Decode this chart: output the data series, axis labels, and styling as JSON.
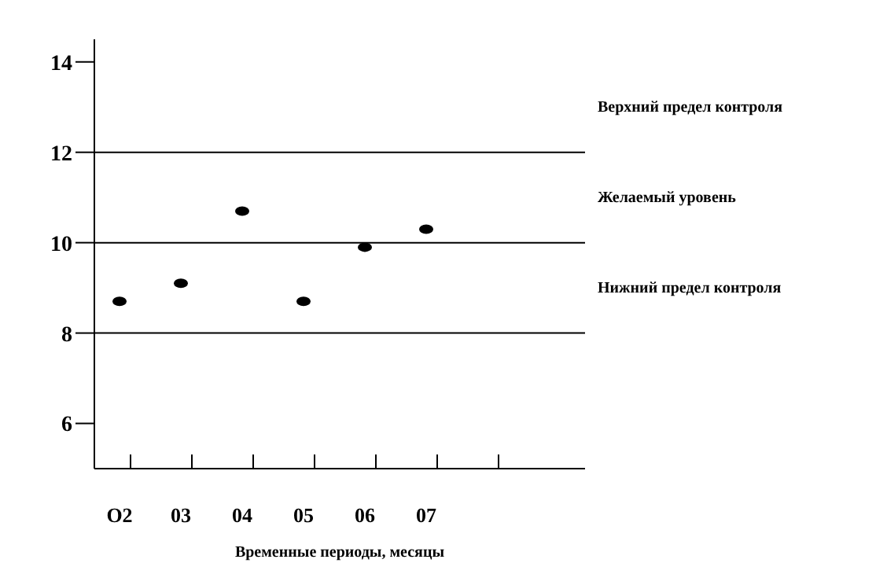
{
  "chart_data": {
    "type": "scatter",
    "xlabel": "Временные периоды, месяцы",
    "categories": [
      "O2",
      "03",
      "04",
      "05",
      "06",
      "07",
      null
    ],
    "values": [
      8.7,
      9.1,
      10.7,
      8.7,
      9.9,
      10.3,
      null
    ],
    "color": "#000000",
    "marker": "circle",
    "grid": false,
    "legend": false,
    "ylim": [
      5,
      14.5
    ],
    "yticks": [
      6,
      8,
      10,
      12,
      14
    ],
    "ref_lines": [
      {
        "axis": "y",
        "value": 12,
        "label": "Верхний предел контроля",
        "color": "#000000"
      },
      {
        "axis": "y",
        "value": 10,
        "label": "Желаемый уровень",
        "color": "#000000"
      },
      {
        "axis": "y",
        "value": 8,
        "label": "Нижний предел контроля",
        "color": "#000000"
      }
    ]
  }
}
